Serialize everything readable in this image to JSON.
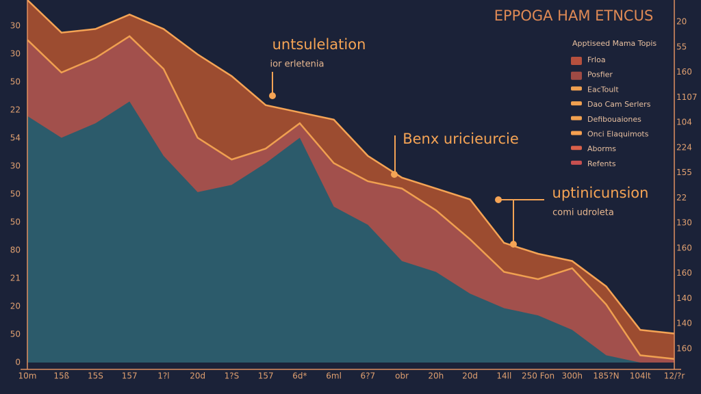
{
  "chart_data": {
    "type": "area",
    "title": "EPPOGA HAM ETNCUS",
    "categories": [
      "10m",
      "15ß",
      "15S",
      "157",
      "1?l",
      "20d",
      "1?S",
      "157",
      "6d*",
      "6ml",
      "6?7",
      "obr",
      "20h",
      "20d",
      "14ll",
      "250 Fon",
      "300h",
      "185?N",
      "104lt",
      "12/?r"
    ],
    "ylim": [
      0,
      100
    ],
    "left_axis_labels": [
      "30",
      "30",
      "50",
      "22",
      "54",
      "30",
      "50",
      "50",
      "80",
      "21",
      "20",
      "50",
      "0"
    ],
    "right_axis_labels": [
      "20",
      "55",
      "160",
      "1107",
      "104",
      "224",
      "155",
      "22",
      "130",
      "160",
      "160",
      "140",
      "140",
      "160"
    ],
    "series": [
      {
        "color": "#9c4c30",
        "line_color": "#f5a455",
        "values": [
          100,
          91,
          92,
          96,
          92,
          85,
          79,
          71,
          69,
          67,
          57,
          51,
          48,
          45,
          33,
          30,
          28,
          21,
          9,
          8
        ]
      },
      {
        "color": "#a2504c",
        "line_color": "#f0a050",
        "values": [
          89,
          80,
          84,
          90,
          81,
          62,
          56,
          59,
          66,
          55,
          50,
          48,
          42,
          34,
          25,
          23,
          26,
          16,
          2,
          1
        ]
      },
      {
        "color": "#2c5b6b",
        "line_color": null,
        "values": [
          68,
          62,
          66,
          72,
          57,
          47,
          49,
          55,
          62,
          43,
          38,
          28,
          25,
          19,
          15,
          13,
          9,
          2,
          0,
          0
        ]
      }
    ],
    "annotations": [
      {
        "title": "untsulelation",
        "subtitle": "ior erletenia"
      },
      {
        "title": "Benx uricieurcie"
      },
      {
        "title": "uptinicunsion",
        "subtitle": "comi udroleta"
      }
    ],
    "legend": {
      "title": "Apptiseed Mama Topis",
      "entries": [
        {
          "label": "Frloa",
          "color": "#b5503e"
        },
        {
          "label": "Posfier",
          "color": "#a04a44"
        },
        {
          "label": "EacToult",
          "color": "#f0a050"
        },
        {
          "label": "Dao Cam Serlers",
          "color": "#f0a050"
        },
        {
          "label": "Defibouaiones",
          "color": "#f0a050"
        },
        {
          "label": "Onci Elaquimots",
          "color": "#f5a050"
        },
        {
          "label": "Aborms",
          "color": "#d9604a"
        },
        {
          "label": "Refents",
          "color": "#c85050"
        }
      ]
    }
  }
}
